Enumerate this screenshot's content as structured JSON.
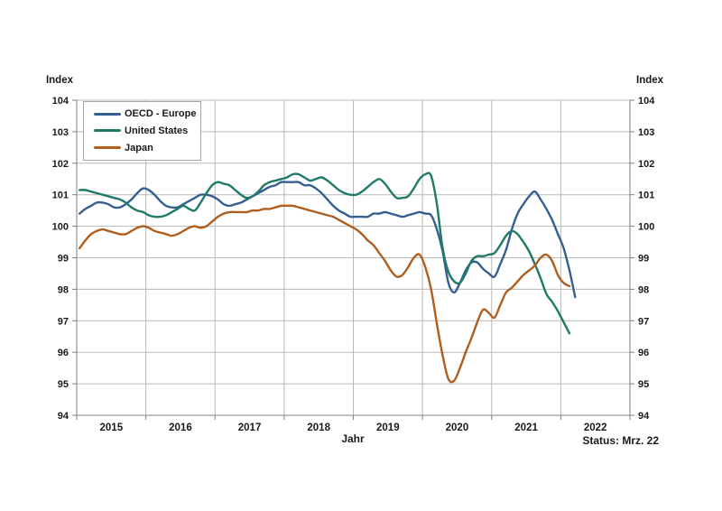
{
  "labels": {
    "y_axis_title_left": "Index",
    "y_axis_title_right": "Index",
    "x_axis_title": "Jahr",
    "status_note": "Status: Mrz. 22"
  },
  "legend": {
    "position": "top-left-inside",
    "items": [
      {
        "label": "OECD - Europe",
        "color": "#365f91"
      },
      {
        "label": "United States",
        "color": "#1f7a68"
      },
      {
        "label": "Japan",
        "color": "#b05e1e"
      }
    ]
  },
  "colors": {
    "gridline": "#b8b8b8",
    "axis": "#7f7f7f",
    "text": "#1a1a1a",
    "background": "#ffffff"
  },
  "chart_data": {
    "type": "line",
    "title": "",
    "xlabel": "Jahr",
    "ylabel": "Index",
    "grid": true,
    "legend_position": "top-left-inside",
    "x_axis": {
      "tick_labels": [
        "2015",
        "2016",
        "2017",
        "2018",
        "2019",
        "2020",
        "2021",
        "2022"
      ],
      "start_month": "2015-01",
      "frequency": "monthly",
      "year_slots": 8
    },
    "y_axis": {
      "min": 94,
      "max": 104,
      "tick_step": 1,
      "ticks": [
        94,
        95,
        96,
        97,
        98,
        99,
        100,
        101,
        102,
        103,
        104
      ],
      "shown_on_both_sides": true
    },
    "status_note": "Status: Mrz. 22",
    "series": [
      {
        "name": "OECD - Europe",
        "color": "#365f91",
        "start_month": "2015-01",
        "end_month": "2022-03",
        "values": [
          100.4,
          100.55,
          100.65,
          100.75,
          100.75,
          100.7,
          100.6,
          100.6,
          100.7,
          100.85,
          101.05,
          101.2,
          101.15,
          101.0,
          100.8,
          100.65,
          100.6,
          100.6,
          100.7,
          100.8,
          100.9,
          101.0,
          101.0,
          100.95,
          100.85,
          100.7,
          100.65,
          100.7,
          100.75,
          100.85,
          100.95,
          101.05,
          101.15,
          101.25,
          101.3,
          101.4,
          101.4,
          101.4,
          101.4,
          101.3,
          101.3,
          101.2,
          101.05,
          100.85,
          100.65,
          100.5,
          100.4,
          100.3,
          100.3,
          100.3,
          100.3,
          100.4,
          100.4,
          100.45,
          100.4,
          100.35,
          100.3,
          100.35,
          100.4,
          100.45,
          100.4,
          100.35,
          99.9,
          99.2,
          98.2,
          97.9,
          98.2,
          98.6,
          98.85,
          98.85,
          98.65,
          98.5,
          98.4,
          98.8,
          99.25,
          99.9,
          100.4,
          100.7,
          100.95,
          101.1,
          100.85,
          100.55,
          100.2,
          99.75,
          99.3,
          98.6,
          97.75
        ]
      },
      {
        "name": "United States",
        "color": "#1f7a68",
        "start_month": "2015-01",
        "end_month": "2022-02",
        "values": [
          101.15,
          101.15,
          101.1,
          101.05,
          101.0,
          100.95,
          100.9,
          100.85,
          100.75,
          100.6,
          100.5,
          100.45,
          100.35,
          100.3,
          100.3,
          100.35,
          100.45,
          100.55,
          100.65,
          100.55,
          100.5,
          100.75,
          101.05,
          101.3,
          101.4,
          101.35,
          101.3,
          101.15,
          101.0,
          100.9,
          100.95,
          101.1,
          101.3,
          101.4,
          101.45,
          101.5,
          101.55,
          101.65,
          101.65,
          101.55,
          101.45,
          101.5,
          101.55,
          101.45,
          101.3,
          101.15,
          101.05,
          101.0,
          101.0,
          101.1,
          101.25,
          101.4,
          101.5,
          101.35,
          101.1,
          100.9,
          100.9,
          100.95,
          101.2,
          101.5,
          101.65,
          101.6,
          100.7,
          99.3,
          98.55,
          98.25,
          98.2,
          98.5,
          98.9,
          99.05,
          99.05,
          99.1,
          99.15,
          99.4,
          99.7,
          99.85,
          99.75,
          99.5,
          99.2,
          98.8,
          98.35,
          97.85,
          97.6,
          97.3,
          96.95,
          96.6
        ]
      },
      {
        "name": "Japan",
        "color": "#b05e1e",
        "start_month": "2015-01",
        "end_month": "2022-02",
        "values": [
          99.3,
          99.55,
          99.75,
          99.85,
          99.9,
          99.85,
          99.8,
          99.75,
          99.75,
          99.85,
          99.95,
          100.0,
          99.95,
          99.85,
          99.8,
          99.75,
          99.7,
          99.75,
          99.85,
          99.95,
          100.0,
          99.95,
          100.0,
          100.15,
          100.3,
          100.4,
          100.45,
          100.45,
          100.45,
          100.45,
          100.5,
          100.5,
          100.55,
          100.55,
          100.6,
          100.65,
          100.65,
          100.65,
          100.6,
          100.55,
          100.5,
          100.45,
          100.4,
          100.35,
          100.3,
          100.2,
          100.1,
          100.0,
          99.9,
          99.75,
          99.55,
          99.4,
          99.15,
          98.9,
          98.6,
          98.4,
          98.45,
          98.7,
          99.0,
          99.1,
          98.7,
          98.0,
          96.9,
          95.9,
          95.15,
          95.1,
          95.5,
          96.0,
          96.45,
          96.95,
          97.35,
          97.25,
          97.1,
          97.5,
          97.9,
          98.05,
          98.25,
          98.45,
          98.6,
          98.75,
          99.0,
          99.1,
          98.9,
          98.45,
          98.2,
          98.1
        ]
      }
    ]
  }
}
